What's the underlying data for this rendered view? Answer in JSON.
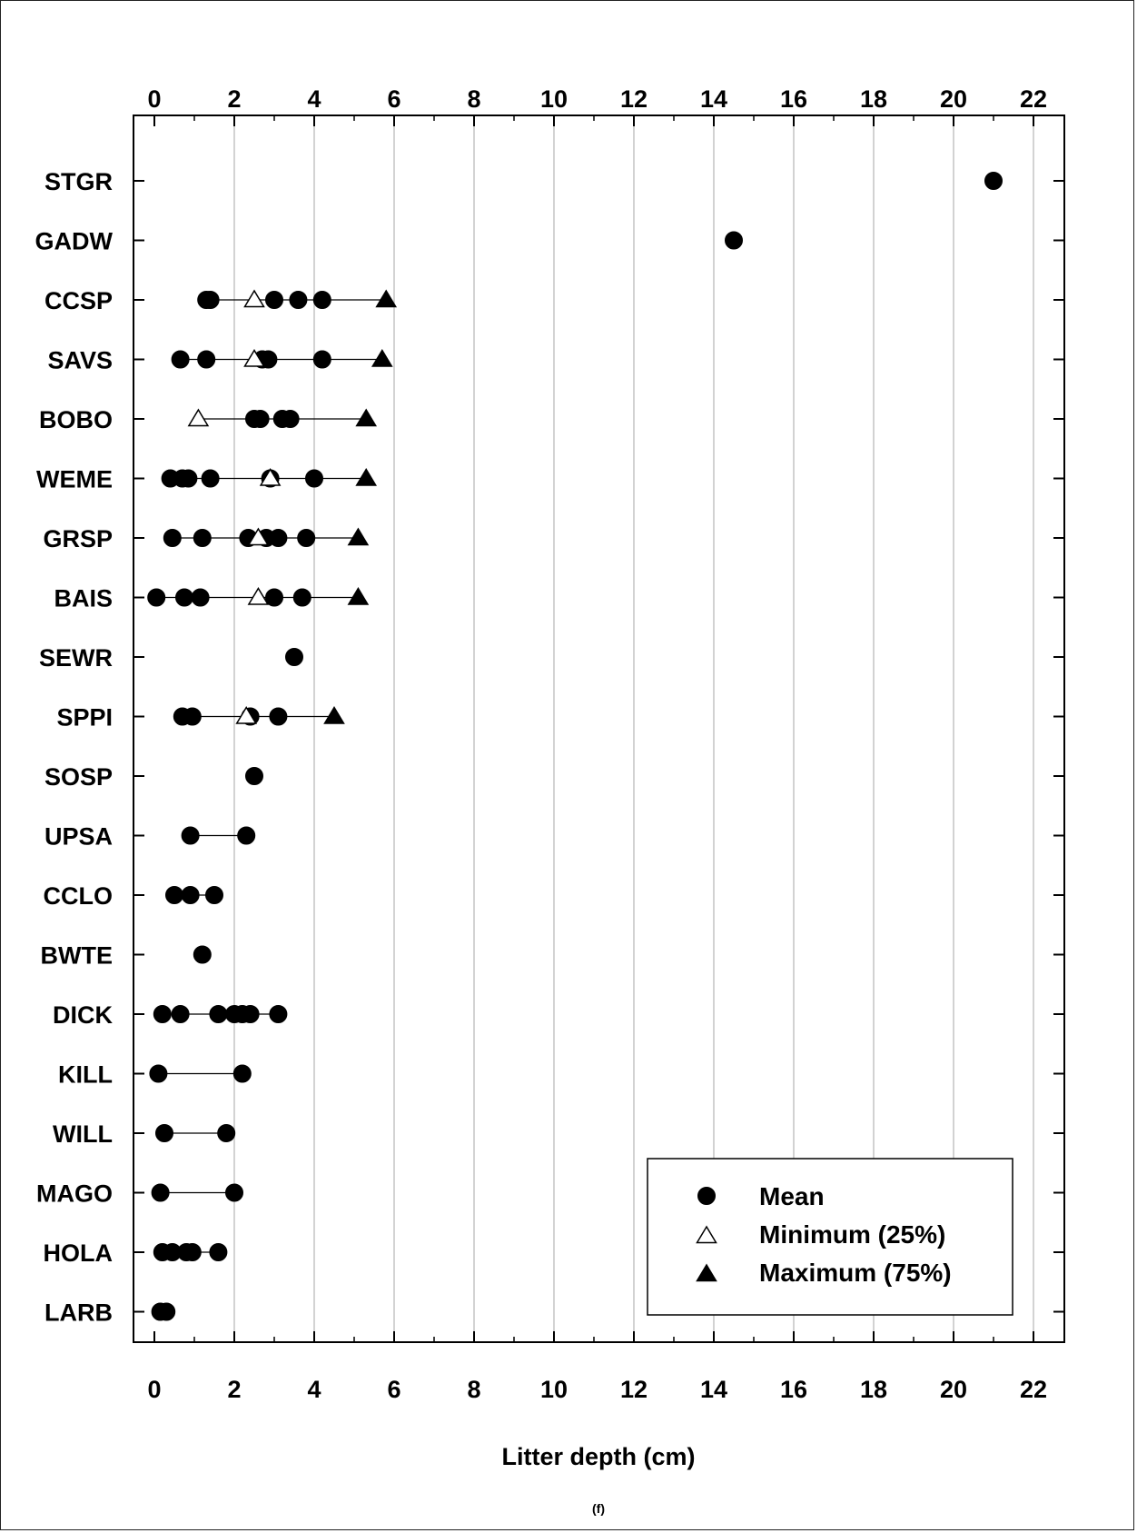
{
  "chart_data": {
    "type": "scatter",
    "xlabel": "Litter depth (cm)",
    "panel_label": "(f)",
    "xlim": [
      0,
      22
    ],
    "xticks": [
      0,
      2,
      4,
      6,
      8,
      10,
      12,
      14,
      16,
      18,
      20,
      22
    ],
    "grid": "vertical",
    "legend_position": "bottom-right",
    "legend": [
      {
        "marker": "circle-filled",
        "label": "Mean"
      },
      {
        "marker": "triangle-open",
        "label": "Minimum (25%)"
      },
      {
        "marker": "triangle-filled",
        "label": "Maximum (75%)"
      }
    ],
    "categories": [
      "STGR",
      "GADW",
      "CCSP",
      "SAVS",
      "BOBO",
      "WEME",
      "GRSP",
      "BAIS",
      "SEWR",
      "SPPI",
      "SOSP",
      "UPSA",
      "CCLO",
      "BWTE",
      "DICK",
      "KILL",
      "WILL",
      "MAGO",
      "HOLA",
      "LARB"
    ],
    "rows": [
      {
        "species": "STGR",
        "means": [
          21.0
        ],
        "min": null,
        "max": null
      },
      {
        "species": "GADW",
        "means": [
          14.5
        ],
        "min": null,
        "max": null
      },
      {
        "species": "CCSP",
        "means": [
          1.3,
          1.4,
          3.0,
          3.6,
          4.2
        ],
        "min": 2.5,
        "max": 5.8
      },
      {
        "species": "SAVS",
        "means": [
          0.65,
          1.3,
          2.7,
          2.85,
          4.2
        ],
        "min": 2.5,
        "max": 5.7
      },
      {
        "species": "BOBO",
        "means": [
          2.5,
          2.65,
          3.2,
          3.4
        ],
        "min": 1.1,
        "max": 5.3
      },
      {
        "species": "WEME",
        "means": [
          0.4,
          0.7,
          0.85,
          1.4,
          2.9,
          4.0
        ],
        "min": 2.9,
        "max": 5.3
      },
      {
        "species": "GRSP",
        "means": [
          0.45,
          1.2,
          2.35,
          2.8,
          3.1,
          3.8
        ],
        "min": 2.6,
        "max": 5.1
      },
      {
        "species": "BAIS",
        "means": [
          0.05,
          0.75,
          1.15,
          3.0,
          3.7
        ],
        "min": 2.6,
        "max": 5.1
      },
      {
        "species": "SEWR",
        "means": [
          3.5
        ],
        "min": null,
        "max": null
      },
      {
        "species": "SPPI",
        "means": [
          0.7,
          0.95,
          2.4,
          3.1
        ],
        "min": 2.3,
        "max": 4.5
      },
      {
        "species": "SOSP",
        "means": [
          2.5
        ],
        "min": null,
        "max": null
      },
      {
        "species": "UPSA",
        "means": [
          0.9,
          2.3
        ],
        "min": null,
        "max": null
      },
      {
        "species": "CCLO",
        "means": [
          0.5,
          0.9,
          1.5
        ],
        "min": null,
        "max": null
      },
      {
        "species": "BWTE",
        "means": [
          1.2
        ],
        "min": null,
        "max": null
      },
      {
        "species": "DICK",
        "means": [
          0.2,
          0.65,
          1.6,
          2.0,
          2.2,
          2.4,
          3.1
        ],
        "min": null,
        "max": null
      },
      {
        "species": "KILL",
        "means": [
          0.1,
          2.2
        ],
        "min": null,
        "max": null
      },
      {
        "species": "WILL",
        "means": [
          0.25,
          1.8
        ],
        "min": null,
        "max": null
      },
      {
        "species": "MAGO",
        "means": [
          0.15,
          2.0
        ],
        "min": null,
        "max": null
      },
      {
        "species": "HOLA",
        "means": [
          0.2,
          0.45,
          0.8,
          0.95,
          1.6
        ],
        "min": null,
        "max": null
      },
      {
        "species": "LARB",
        "means": [
          0.15,
          0.3
        ],
        "min": null,
        "max": null
      }
    ]
  }
}
